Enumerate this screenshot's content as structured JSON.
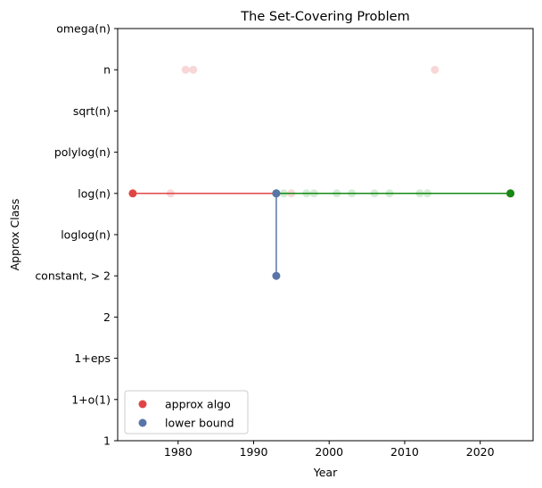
{
  "chart_data": {
    "type": "scatter",
    "title": "The Set-Covering Problem",
    "xlabel": "Year",
    "ylabel": "Approx Class",
    "xlim": [
      1972,
      2027
    ],
    "xticks": [
      1980,
      1990,
      2000,
      2010,
      2020
    ],
    "y_categories": [
      "1",
      "1+o(1)",
      "1+eps",
      "2",
      "constant, > 2",
      "loglog(n)",
      "log(n)",
      "polylog(n)",
      "sqrt(n)",
      "n",
      "omega(n)"
    ],
    "legend": {
      "position": "lower-left",
      "entries": [
        {
          "label": "approx algo",
          "color": "#e04545"
        },
        {
          "label": "lower bound",
          "color": "#5875a8"
        }
      ]
    },
    "colors": {
      "approx": "#e04545",
      "lower": "#5875a8",
      "current": "#138a13",
      "faded_red": "#f6d3d3",
      "faded_green": "#cfe9cf"
    },
    "series": [
      {
        "name": "approx algo",
        "role": "approx",
        "points": [
          {
            "x": 1974,
            "y": "log(n)"
          },
          {
            "x": 2024,
            "y": "log(n)"
          }
        ]
      },
      {
        "name": "lower bound",
        "role": "lower",
        "points": [
          {
            "x": 1993,
            "y": "constant, > 2"
          },
          {
            "x": 1993,
            "y": "log(n)"
          }
        ]
      },
      {
        "name": "",
        "role": "current",
        "points": [
          {
            "x": 1993,
            "y": "log(n)"
          },
          {
            "x": 2024,
            "y": "log(n)"
          }
        ]
      },
      {
        "name": "",
        "role": "faded_red",
        "points": [
          {
            "x": 1979,
            "y": "log(n)"
          },
          {
            "x": 1981,
            "y": "n"
          },
          {
            "x": 1982,
            "y": "n"
          },
          {
            "x": 1995,
            "y": "log(n)"
          },
          {
            "x": 2014,
            "y": "n"
          }
        ]
      },
      {
        "name": "",
        "role": "faded_green",
        "points": [
          {
            "x": 1994,
            "y": "log(n)"
          },
          {
            "x": 1997,
            "y": "log(n)"
          },
          {
            "x": 1998,
            "y": "log(n)"
          },
          {
            "x": 2001,
            "y": "log(n)"
          },
          {
            "x": 2003,
            "y": "log(n)"
          },
          {
            "x": 2006,
            "y": "log(n)"
          },
          {
            "x": 2008,
            "y": "log(n)"
          },
          {
            "x": 2012,
            "y": "log(n)"
          },
          {
            "x": 2013,
            "y": "log(n)"
          }
        ]
      }
    ]
  }
}
